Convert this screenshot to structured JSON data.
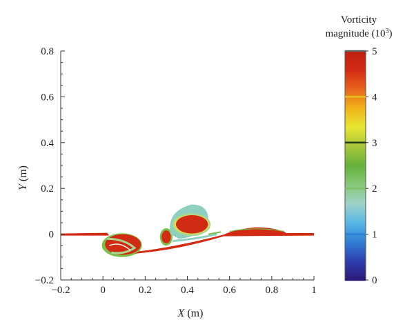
{
  "chart_data": {
    "type": "heatmap",
    "xlabel_var": "X",
    "xlabel_unit": " (m)",
    "ylabel_var": "Y",
    "ylabel_unit": " (m)",
    "xlim": [
      -0.2,
      1.0
    ],
    "ylim": [
      -0.2,
      0.8
    ],
    "x_ticks": [
      -0.2,
      0,
      0.2,
      0.4,
      0.6,
      0.8,
      1
    ],
    "x_tick_labels": [
      "−0.2",
      "0",
      "0.2",
      "0.4",
      "0.6",
      "0.8",
      "1"
    ],
    "y_ticks": [
      -0.2,
      0,
      0.2,
      0.4,
      0.6,
      0.8
    ],
    "y_tick_labels": [
      "−0.2",
      "0",
      "0.2",
      "0.4",
      "0.6",
      "0.8"
    ],
    "colorbar": {
      "title_line1": "Vorticity",
      "title_line2": "magnitude (10",
      "title_sup": "3",
      "title_end": ")",
      "min": 0,
      "max": 5,
      "ticks": [
        0,
        1,
        2,
        3,
        4,
        5
      ],
      "tick_labels": [
        "0",
        "1",
        "2",
        "3",
        "4",
        "5"
      ],
      "colors": [
        "#2b1a7a",
        "#2f3fae",
        "#2f7fd6",
        "#58b8e6",
        "#9fd2c8",
        "#86c87a",
        "#66b23c",
        "#a8c63a",
        "#e6e632",
        "#f2b418",
        "#e8641e",
        "#d22b14",
        "#c01e10"
      ],
      "line_colors": [
        "#2b1a7a",
        "#2f7fd6",
        "#7cc06a",
        "#1e3a1e",
        "#e8c020",
        "#606060"
      ]
    },
    "vortex_regions": [
      {
        "name": "left-vortex",
        "cx": 0.09,
        "cy": -0.048,
        "rx": 0.085,
        "ry": 0.042,
        "magnitude": 5
      },
      {
        "name": "upper-vortex",
        "cx": 0.42,
        "cy": 0.042,
        "rx": 0.085,
        "ry": 0.048,
        "magnitude": 5
      },
      {
        "name": "small-vortex",
        "cx": 0.3,
        "cy": -0.01,
        "rx": 0.03,
        "ry": 0.04,
        "magnitude": 5
      },
      {
        "name": "right-surface-layer",
        "x0": 0.55,
        "x1": 1.0,
        "magnitude": 5
      },
      {
        "name": "left-surface-layer",
        "x0": -0.2,
        "x1": 0.02,
        "magnitude": 5
      }
    ]
  }
}
